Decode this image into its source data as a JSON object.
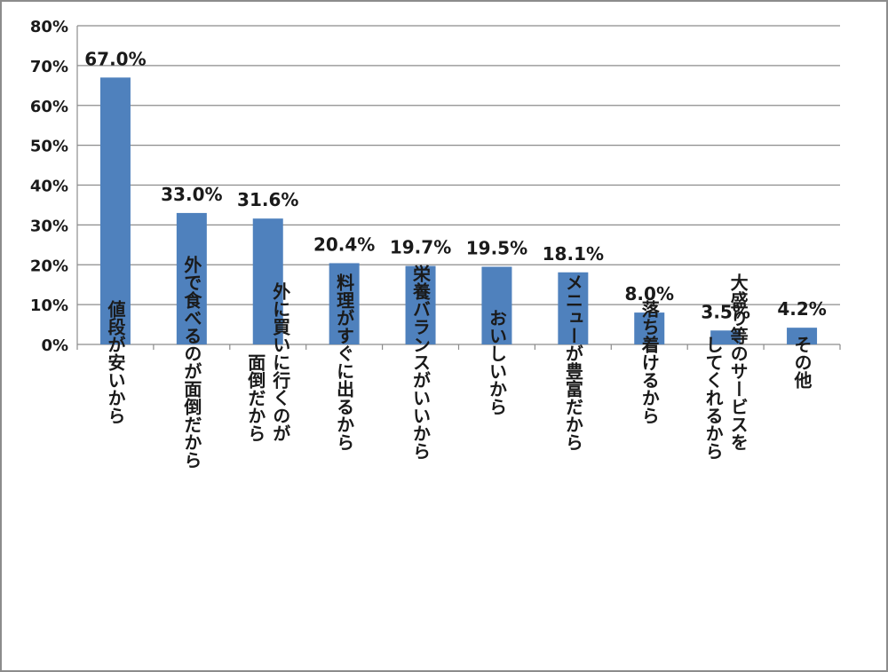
{
  "chart_data": {
    "type": "bar",
    "categories": [
      [
        "値段が安いから"
      ],
      [
        "外で食べるのが面倒だから"
      ],
      [
        "外に買いに行くのが",
        "面倒だから"
      ],
      [
        "料理がすぐに出るから"
      ],
      [
        "栄養バランスがいいから"
      ],
      [
        "おいしいから"
      ],
      [
        "メニューが豊富だから"
      ],
      [
        "落ち着けるから"
      ],
      [
        "大盛り等のサービスを",
        "してくれるから"
      ],
      [
        "その他"
      ]
    ],
    "values": [
      67.0,
      33.0,
      31.6,
      20.4,
      19.7,
      19.5,
      18.1,
      8.0,
      3.5,
      4.2
    ],
    "data_labels": [
      "67.0%",
      "33.0%",
      "31.6%",
      "20.4%",
      "19.7%",
      "19.5%",
      "18.1%",
      "8.0%",
      "3.5%",
      "4.2%"
    ],
    "y_ticks": [
      "0%",
      "10%",
      "20%",
      "30%",
      "40%",
      "50%",
      "60%",
      "70%",
      "80%"
    ],
    "ylim": [
      0,
      80
    ],
    "grid": true,
    "bar_color": "#4f81bd",
    "grid_color": "#8c8c8c"
  }
}
